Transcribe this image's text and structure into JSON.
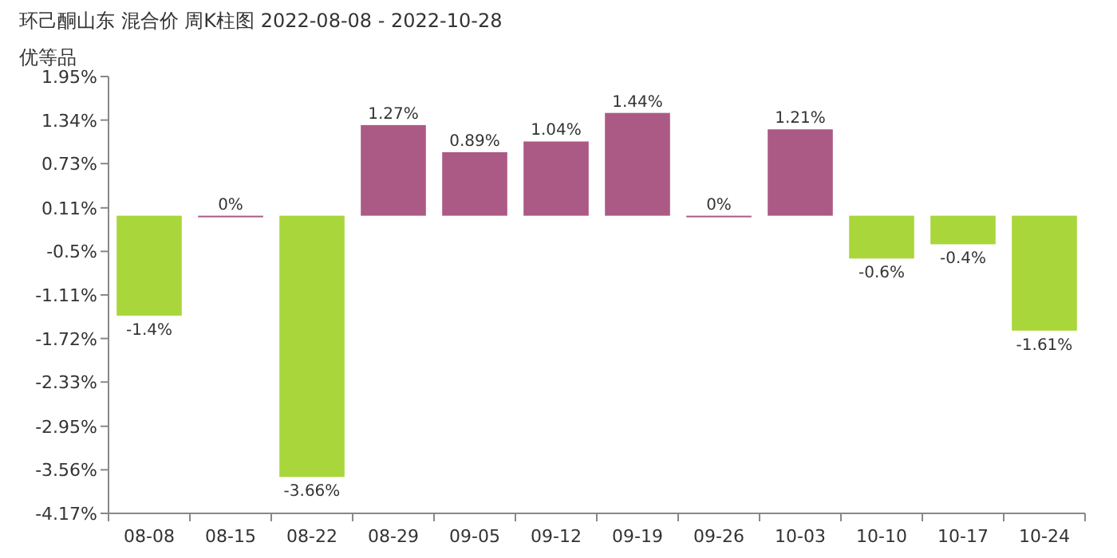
{
  "chart_data": {
    "type": "bar",
    "title": "环己酮山东 混合价 周K柱图 2022-08-08 - 2022-10-28",
    "subtitle": "优等品",
    "categories": [
      "08-08",
      "08-15",
      "08-22",
      "08-29",
      "09-05",
      "09-12",
      "09-19",
      "09-26",
      "10-03",
      "10-10",
      "10-17",
      "10-24"
    ],
    "values": [
      -1.4,
      0,
      -3.66,
      1.27,
      0.89,
      1.04,
      1.44,
      0,
      1.21,
      -0.6,
      -0.4,
      -1.61
    ],
    "colors": [
      "#a9d63a",
      "#ab5a85",
      "#a9d63a",
      "#ab5a85",
      "#ab5a85",
      "#ab5a85",
      "#ab5a85",
      "#ab5a85",
      "#ab5a85",
      "#a9d63a",
      "#a9d63a",
      "#a9d63a"
    ],
    "value_labels": [
      "-1.4%",
      "0%",
      "-3.66%",
      "1.27%",
      "0.89%",
      "1.04%",
      "1.44%",
      "0%",
      "1.21%",
      "-0.6%",
      "-0.4%",
      "-1.61%"
    ],
    "ylim": [
      -4.17,
      1.95
    ],
    "yticks": [
      {
        "value": 1.95,
        "label": "1.95%"
      },
      {
        "value": 1.34,
        "label": "1.34%"
      },
      {
        "value": 0.73,
        "label": "0.73%"
      },
      {
        "value": 0.11,
        "label": "0.11%"
      },
      {
        "value": -0.5,
        "label": "-0.5%"
      },
      {
        "value": -1.11,
        "label": "-1.11%"
      },
      {
        "value": -1.72,
        "label": "-1.72%"
      },
      {
        "value": -2.33,
        "label": "-2.33%"
      },
      {
        "value": -2.95,
        "label": "-2.95%"
      },
      {
        "value": -3.56,
        "label": "-3.56%"
      },
      {
        "value": -4.17,
        "label": "-4.17%"
      }
    ]
  }
}
